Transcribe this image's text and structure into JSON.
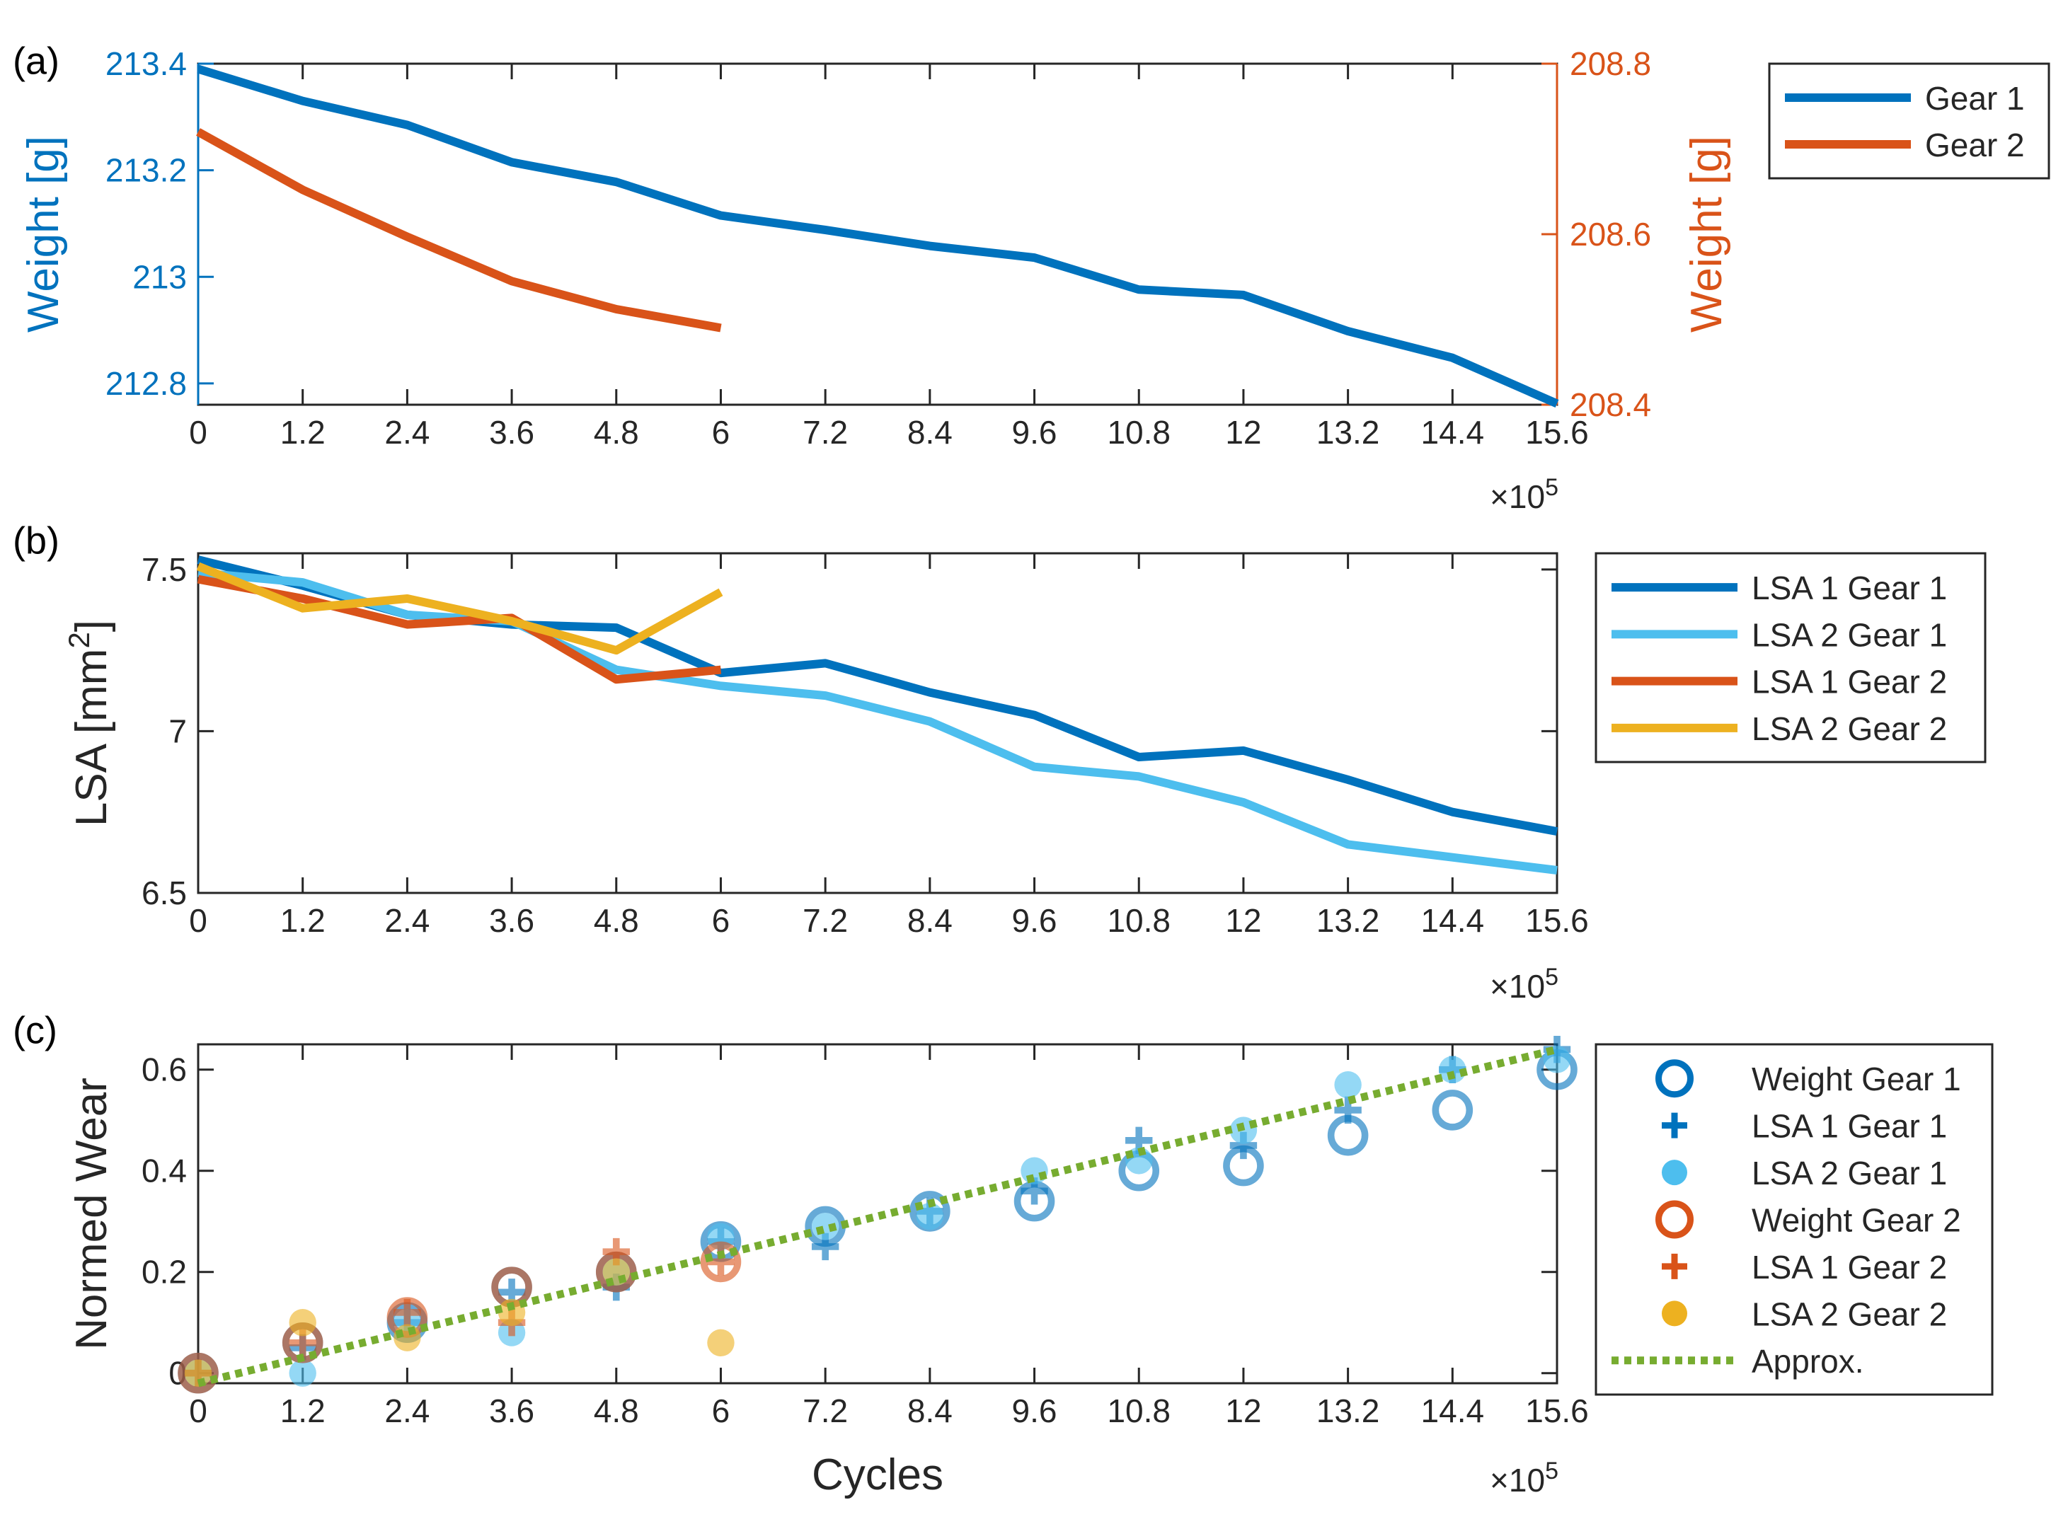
{
  "figure": {
    "xlabel": "Cycles",
    "exponent_base": "×10",
    "exponent_power": "5"
  },
  "colors": {
    "blue": "#0072BD",
    "lightblue": "#4DBEEE",
    "orange": "#D95319",
    "yellow": "#EDB120",
    "green": "#77AC30",
    "axis": "#262626",
    "leftaxis_a": "#0072BD",
    "rightaxis_a": "#D95319"
  },
  "chart_data": [
    {
      "panel": "(a)",
      "type": "line",
      "x_ticks": [
        "0",
        "1.2",
        "2.4",
        "3.6",
        "4.8",
        "6",
        "7.2",
        "8.4",
        "9.6",
        "10.8",
        "12",
        "13.2",
        "14.4",
        "15.6"
      ],
      "xlim": [
        0,
        15.6
      ],
      "ylabel_left": "Weight [g]",
      "ylabel_right": "Weight [g]",
      "ylim_left": [
        212.76,
        213.4
      ],
      "ylim_right": [
        208.4,
        208.8
      ],
      "yticks_left": [
        "212.8",
        "213",
        "213.2",
        "213.4"
      ],
      "yticks_right": [
        "208.4",
        "208.6",
        "208.8"
      ],
      "legend_position": "outside-right",
      "series": [
        {
          "name": "Gear 1",
          "axis": "left",
          "color": "blue",
          "x": [
            0,
            1.2,
            2.4,
            3.6,
            4.8,
            6,
            7.2,
            8.4,
            9.6,
            10.8,
            12,
            13.2,
            14.4,
            15.6
          ],
          "values": [
            213.39,
            213.33,
            213.285,
            213.215,
            213.178,
            213.115,
            213.088,
            213.058,
            213.036,
            212.976,
            212.966,
            212.898,
            212.848,
            212.762
          ]
        },
        {
          "name": "Gear 2",
          "axis": "right",
          "color": "orange",
          "x": [
            0,
            1.2,
            2.4,
            3.6,
            4.8,
            6
          ],
          "values": [
            208.72,
            208.652,
            208.597,
            208.545,
            208.512,
            208.49
          ]
        }
      ]
    },
    {
      "panel": "(b)",
      "type": "line",
      "x_ticks": [
        "0",
        "1.2",
        "2.4",
        "3.6",
        "4.8",
        "6",
        "7.2",
        "8.4",
        "9.6",
        "10.8",
        "12",
        "13.2",
        "14.4",
        "15.6"
      ],
      "xlim": [
        0,
        15.6
      ],
      "ylabel": "LSA [mm",
      "ylabel_sup": "2",
      "ylabel_end": "]",
      "ylim": [
        6.5,
        7.55
      ],
      "yticks": [
        "6.5",
        "7",
        "7.5"
      ],
      "legend_position": "outside-right",
      "series": [
        {
          "name": "LSA 1 Gear 1",
          "color": "blue",
          "x": [
            0,
            1.2,
            2.4,
            3.6,
            4.8,
            6,
            7.2,
            8.4,
            9.6,
            10.8,
            12,
            13.2,
            14.4,
            15.6
          ],
          "values": [
            7.53,
            7.45,
            7.36,
            7.33,
            7.32,
            7.18,
            7.21,
            7.12,
            7.05,
            6.92,
            6.94,
            6.85,
            6.75,
            6.69
          ]
        },
        {
          "name": "LSA 2 Gear 1",
          "color": "lightblue",
          "x": [
            0,
            1.2,
            2.4,
            3.6,
            4.8,
            6,
            7.2,
            8.4,
            9.6,
            10.8,
            12,
            13.2,
            14.4,
            15.6
          ],
          "values": [
            7.49,
            7.46,
            7.36,
            7.34,
            7.19,
            7.14,
            7.11,
            7.03,
            6.89,
            6.86,
            6.78,
            6.65,
            6.61,
            6.57
          ]
        },
        {
          "name": "LSA 1 Gear 2",
          "color": "orange",
          "x": [
            0,
            1.2,
            2.4,
            3.6,
            4.8,
            6
          ],
          "values": [
            7.47,
            7.41,
            7.33,
            7.35,
            7.16,
            7.19
          ]
        },
        {
          "name": "LSA 2 Gear 2",
          "color": "yellow",
          "x": [
            0,
            1.2,
            2.4,
            3.6,
            4.8,
            6
          ],
          "values": [
            7.51,
            7.38,
            7.41,
            7.34,
            7.25,
            7.43
          ]
        }
      ]
    },
    {
      "panel": "(c)",
      "type": "scatter",
      "x_ticks": [
        "0",
        "1.2",
        "2.4",
        "3.6",
        "4.8",
        "6",
        "7.2",
        "8.4",
        "9.6",
        "10.8",
        "12",
        "13.2",
        "14.4",
        "15.6"
      ],
      "xlim": [
        0,
        15.6
      ],
      "ylabel": "Normed Wear",
      "ylim": [
        -0.02,
        0.65
      ],
      "yticks": [
        "0",
        "0.2",
        "0.4",
        "0.6"
      ],
      "legend_position": "outside-right",
      "series": [
        {
          "name": "Weight Gear 1",
          "marker": "circle-open",
          "color": "blue",
          "x": [
            0,
            1.2,
            2.4,
            3.6,
            4.8,
            6,
            7.2,
            8.4,
            9.6,
            10.8,
            12,
            13.2,
            14.4,
            15.6
          ],
          "values": [
            0,
            0.06,
            0.1,
            0.17,
            0.2,
            0.26,
            0.29,
            0.32,
            0.34,
            0.4,
            0.41,
            0.47,
            0.52,
            0.6
          ]
        },
        {
          "name": "LSA 1 Gear 1",
          "marker": "plus",
          "color": "blue",
          "x": [
            0,
            1.2,
            2.4,
            3.6,
            4.8,
            6,
            7.2,
            8.4,
            9.6,
            10.8,
            12,
            13.2,
            14.4,
            15.6
          ],
          "values": [
            0,
            0.05,
            0.1,
            0.16,
            0.17,
            0.26,
            0.25,
            0.32,
            0.36,
            0.46,
            0.45,
            0.52,
            0.6,
            0.64
          ]
        },
        {
          "name": "LSA 2 Gear 1",
          "marker": "dot",
          "color": "lightblue",
          "x": [
            0,
            1.2,
            2.4,
            3.6,
            4.8,
            6,
            7.2,
            8.4,
            9.6,
            10.8,
            12,
            13.2,
            14.4,
            15.6
          ],
          "values": [
            0,
            0.0,
            0.1,
            0.08,
            0.2,
            0.27,
            0.29,
            0.31,
            0.4,
            0.42,
            0.48,
            0.57,
            0.6,
            0.62
          ]
        },
        {
          "name": "Weight Gear 2",
          "marker": "circle-open",
          "color": "orange",
          "x": [
            0,
            1.2,
            2.4,
            3.6,
            4.8,
            6
          ],
          "values": [
            0,
            0.06,
            0.11,
            0.17,
            0.2,
            0.22
          ]
        },
        {
          "name": "LSA 1 Gear 2",
          "marker": "plus",
          "color": "orange",
          "x": [
            0,
            1.2,
            2.4,
            3.6,
            4.8,
            6
          ],
          "values": [
            0,
            0.06,
            0.12,
            0.1,
            0.24,
            0.22
          ]
        },
        {
          "name": "LSA 2 Gear 2",
          "marker": "dot",
          "color": "yellow",
          "x": [
            0,
            1.2,
            2.4,
            3.6,
            4.8,
            6
          ],
          "values": [
            0,
            0.1,
            0.07,
            0.12,
            0.2,
            0.06
          ]
        },
        {
          "name": "Approx.",
          "marker": "dotted-line",
          "color": "green",
          "x": [
            0,
            15.6
          ],
          "values": [
            -0.02,
            0.64
          ]
        }
      ]
    }
  ]
}
